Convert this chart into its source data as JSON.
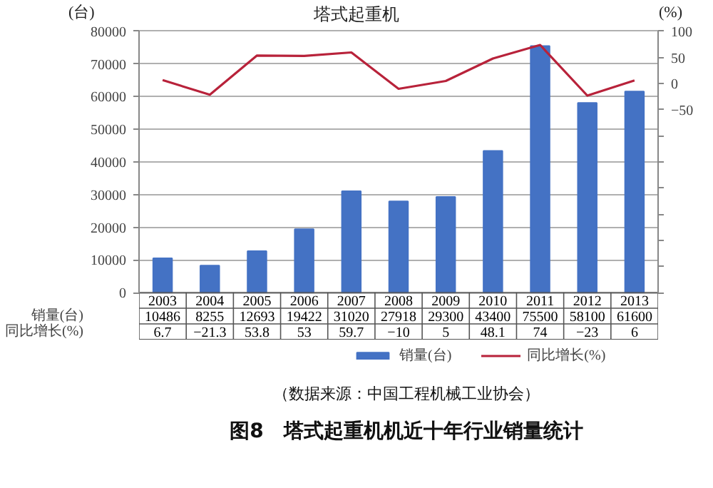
{
  "chart_data": {
    "type": "bar",
    "title": "塔式起重机",
    "ylabel": "(台)",
    "y2label": "(%)",
    "categories": [
      "2003",
      "2004",
      "2005",
      "2006",
      "2007",
      "2008",
      "2009",
      "2010",
      "2011",
      "2012",
      "2013"
    ],
    "series": [
      {
        "name": "销量(台)",
        "color": "#4472c4",
        "values": [
          10486,
          8255,
          12693,
          19422,
          31020,
          27918,
          29300,
          43400,
          75500,
          58100,
          61600
        ]
      },
      {
        "name": "同比增长(%)",
        "type": "line",
        "axis": "y2",
        "color": "#b8223a",
        "values": [
          6.7,
          -21.3,
          53.8,
          53,
          59.7,
          -10,
          5,
          48.1,
          74,
          -23,
          6
        ]
      }
    ],
    "ylim": [
      0,
      80000
    ],
    "yticks": [
      0,
      10000,
      20000,
      30000,
      40000,
      50000,
      60000,
      70000,
      80000
    ],
    "y2lim": [
      -400,
      100
    ],
    "y2ticks": [
      100,
      50,
      0,
      -50,
      {
        "value": -100,
        "label": null
      },
      {
        "value": -150,
        "label": null
      },
      {
        "value": -200,
        "label": null
      },
      {
        "value": -250,
        "label": null
      },
      {
        "value": -300,
        "label": null
      },
      {
        "value": -350,
        "label": null
      },
      {
        "value": -400,
        "label": null
      }
    ],
    "grid": "y",
    "legend": "bottom",
    "data_labels": true,
    "annotations": [
      "（数据来源：中国工程机械工业协会）",
      "图8　塔式起重机机近十年行业销量统计"
    ]
  }
}
